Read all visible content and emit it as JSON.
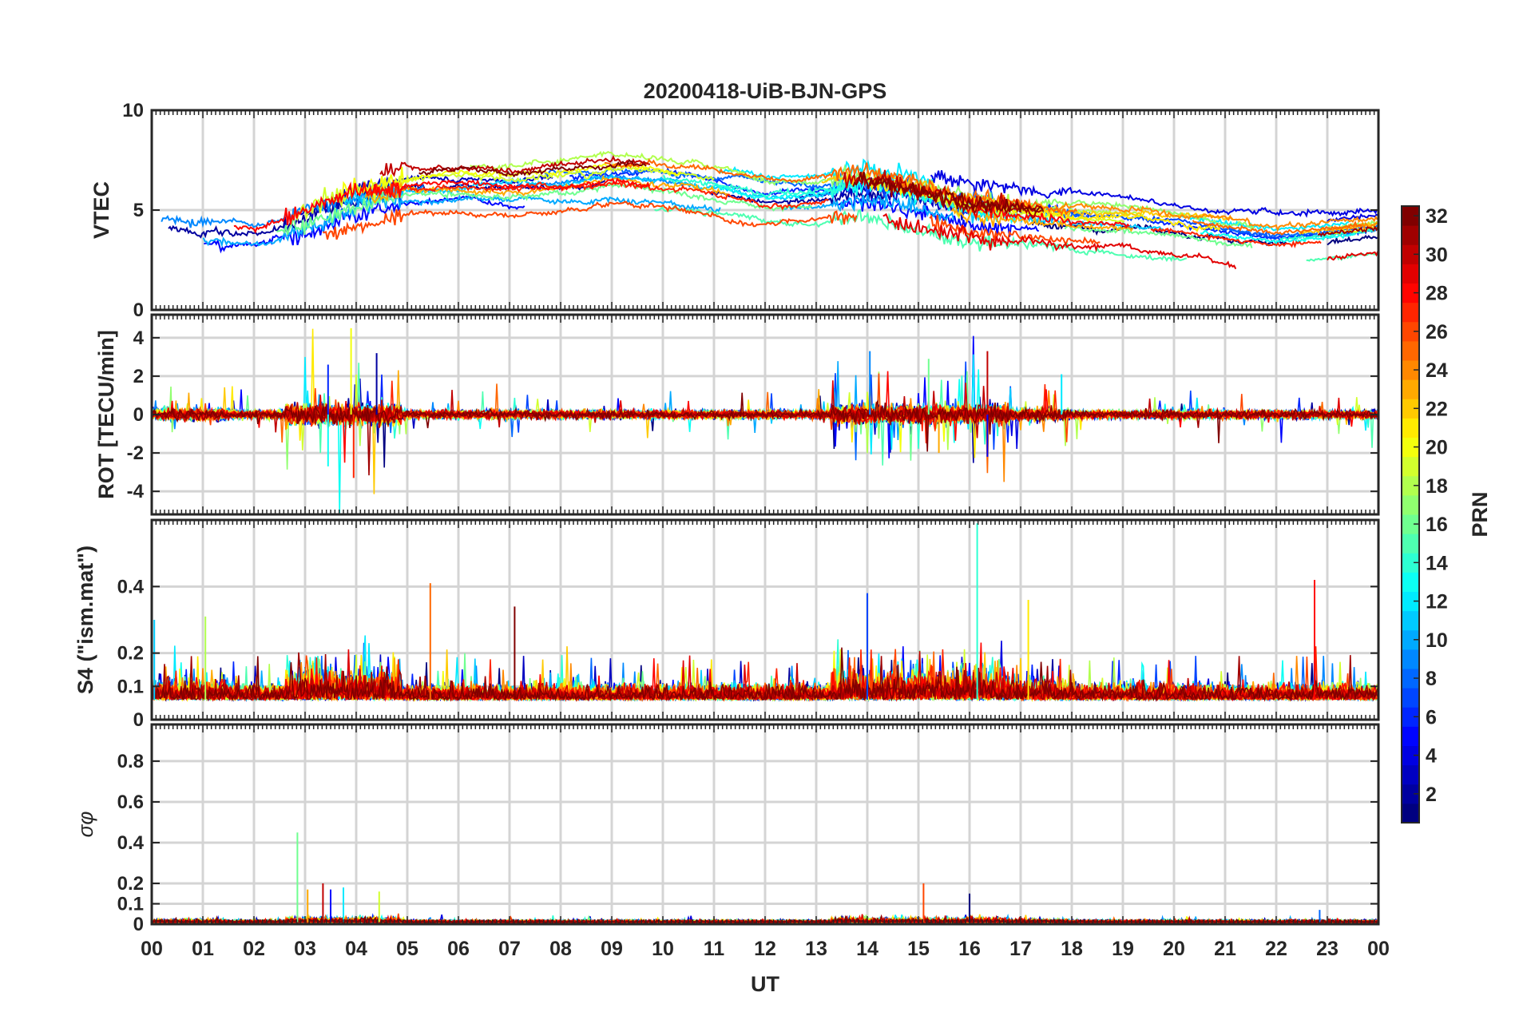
{
  "chart_data": {
    "type": "line",
    "title": "20200418-UiB-BJN-GPS",
    "xlabel": "UT",
    "xlim": [
      0,
      24
    ],
    "x_tick_labels": [
      "00",
      "01",
      "02",
      "03",
      "04",
      "05",
      "06",
      "07",
      "08",
      "09",
      "10",
      "11",
      "12",
      "13",
      "14",
      "15",
      "16",
      "17",
      "18",
      "19",
      "20",
      "21",
      "22",
      "23",
      "00"
    ],
    "colorbar": {
      "label": "PRN",
      "range": [
        1,
        32
      ],
      "tick_labels": [
        "2",
        "4",
        "6",
        "8",
        "10",
        "12",
        "14",
        "16",
        "18",
        "20",
        "22",
        "24",
        "26",
        "28",
        "30",
        "32"
      ],
      "colormap": "jet"
    },
    "series_prn": [
      1,
      2,
      3,
      4,
      5,
      6,
      7,
      8,
      9,
      10,
      11,
      12,
      13,
      14,
      15,
      16,
      17,
      18,
      19,
      20,
      21,
      22,
      23,
      24,
      25,
      26,
      27,
      28,
      29,
      30,
      31,
      32
    ],
    "panels": [
      {
        "name": "vtec",
        "ylabel": "VTEC",
        "ylim": [
          0,
          10
        ],
        "y_ticks": [
          0,
          5,
          10
        ],
        "y_tick_labels": [
          "0",
          "5",
          "10"
        ],
        "trend": {
          "x": [
            0,
            2,
            3,
            4,
            5,
            6,
            7,
            8,
            9,
            10,
            11,
            12,
            13,
            14,
            15,
            16,
            17,
            18,
            19,
            20,
            21,
            22,
            23,
            24
          ],
          "y": [
            4.4,
            4.0,
            4.6,
            5.6,
            6.2,
            6.3,
            6.1,
            6.3,
            6.6,
            6.4,
            6.0,
            5.5,
            5.6,
            6.0,
            5.5,
            4.8,
            4.6,
            4.3,
            4.2,
            4.0,
            3.6,
            3.3,
            3.5,
            3.8
          ]
        },
        "spread": 0.8,
        "noise": 0.35
      },
      {
        "name": "rot",
        "ylabel": "ROT [TECU/min]",
        "ylim": [
          -5.2,
          5.2
        ],
        "y_ticks": [
          -4,
          -2,
          0,
          2,
          4
        ],
        "y_tick_labels": [
          "-4",
          "-2",
          "0",
          "2",
          "4"
        ],
        "peaks": [
          {
            "x": 3.45,
            "y": 2.6
          },
          {
            "x": 3.45,
            "y": -2.7
          },
          {
            "x": 3.9,
            "y": 4.5
          },
          {
            "x": 3.95,
            "y": -3.3
          },
          {
            "x": 4.4,
            "y": 3.2
          },
          {
            "x": 14.05,
            "y": 3.3
          },
          {
            "x": 15.2,
            "y": 2.9
          },
          {
            "x": 15.4,
            "y": -2.0
          },
          {
            "x": 16.35,
            "y": 3.3
          },
          {
            "x": 16.35,
            "y": -2.2
          },
          {
            "x": 17.8,
            "y": 2.1
          }
        ]
      },
      {
        "name": "s4",
        "ylabel": "S4 (\"ism.mat\")",
        "ylim": [
          0,
          0.6
        ],
        "y_ticks": [
          0,
          0.1,
          0.2,
          0.4
        ],
        "y_tick_labels": [
          "0",
          "0.1",
          "0.2",
          "0.4"
        ],
        "peaks": [
          {
            "x": 0.05,
            "y": 0.3
          },
          {
            "x": 1.05,
            "y": 0.31
          },
          {
            "x": 5.45,
            "y": 0.41
          },
          {
            "x": 7.1,
            "y": 0.34
          },
          {
            "x": 14.0,
            "y": 0.38
          },
          {
            "x": 16.15,
            "y": 0.59
          },
          {
            "x": 17.15,
            "y": 0.36
          },
          {
            "x": 22.75,
            "y": 0.42
          }
        ]
      },
      {
        "name": "sigma_phi",
        "ylabel": "σφ",
        "ylim": [
          0,
          0.98
        ],
        "y_ticks": [
          0,
          0.1,
          0.2,
          0.4,
          0.6,
          0.8
        ],
        "y_tick_labels": [
          "0",
          "0.1",
          "0.2",
          "0.4",
          "0.6",
          "0.8"
        ],
        "peaks": [
          {
            "x": 2.85,
            "y": 0.45
          },
          {
            "x": 3.05,
            "y": 0.17
          },
          {
            "x": 3.35,
            "y": 0.2
          },
          {
            "x": 3.5,
            "y": 0.17
          },
          {
            "x": 3.75,
            "y": 0.18
          },
          {
            "x": 4.45,
            "y": 0.16
          },
          {
            "x": 15.1,
            "y": 0.2
          },
          {
            "x": 16.0,
            "y": 0.15
          },
          {
            "x": 22.85,
            "y": 0.07
          }
        ]
      }
    ]
  }
}
